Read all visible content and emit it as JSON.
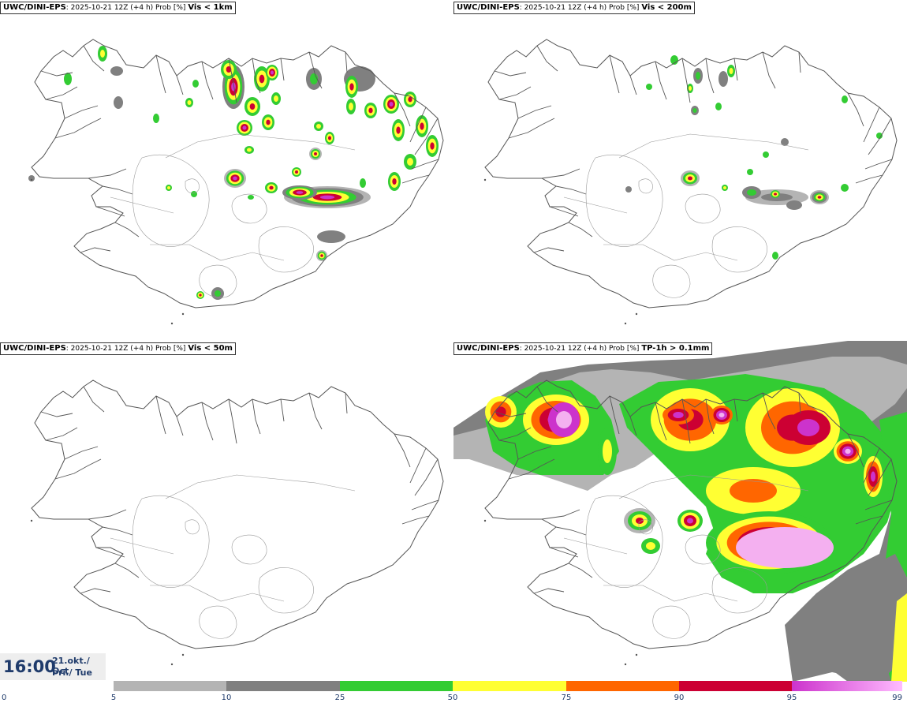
{
  "panels": [
    {
      "model": "UWC/DINI-EPS",
      "run": ": 2025-10-21 12Z (+4 h) Prob [%]",
      "threshold": "Vis < 1km"
    },
    {
      "model": "UWC/DINI-EPS",
      "run": ": 2025-10-21 12Z (+4 h) Prob [%]",
      "threshold": "Vis < 200m"
    },
    {
      "model": "UWC/DINI-EPS",
      "run": ": 2025-10-21 12Z (+4 h) Prob [%]",
      "threshold": "Vis < 50m"
    },
    {
      "model": "UWC/DINI-EPS",
      "run": ": 2025-10-21 12Z (+4 h) Prob [%]",
      "threshold": "TP-1h > 0.1mm"
    }
  ],
  "time": {
    "clock": "16:00",
    "date_line": "21.okt./ Oct",
    "day_line": "Þri./ Tue"
  },
  "legend": {
    "ticks": [
      "0",
      "5",
      "10",
      "25",
      "50",
      "75",
      "90",
      "95",
      "99"
    ],
    "tick_values": [
      0,
      5,
      10,
      25,
      50,
      75,
      90,
      95,
      99
    ],
    "bands": [
      {
        "from": 5,
        "to": 10,
        "color": "#b4b4b4"
      },
      {
        "from": 10,
        "to": 25,
        "color": "#808080"
      },
      {
        "from": 25,
        "to": 50,
        "color": "#33cc33"
      },
      {
        "from": 50,
        "to": 75,
        "color": "#ffff33"
      },
      {
        "from": 75,
        "to": 90,
        "color": "#ff6600"
      },
      {
        "from": 90,
        "to": 95,
        "color": "#cc0033"
      },
      {
        "from": 95,
        "to": 99,
        "color": "#cc33cc",
        "color_end": "#ffbbff"
      }
    ],
    "tick_color": "#1f3b6b"
  }
}
